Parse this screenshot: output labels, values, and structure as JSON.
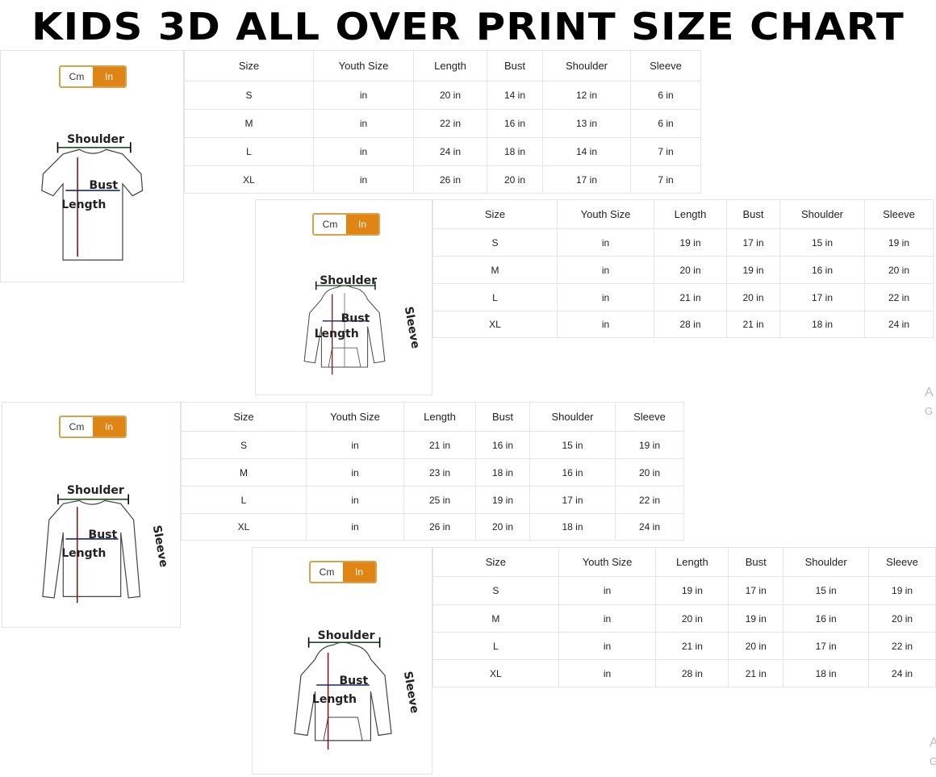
{
  "title": "KIDS 3D ALL OVER PRINT SIZE CHART",
  "unit_toggle": {
    "cm": "Cm",
    "in": "In",
    "selected": "In",
    "active_color": "#e08414"
  },
  "labels": {
    "shoulder": "Shoulder",
    "bust": "Bust",
    "length": "Length",
    "sleeve": "Sleeve"
  },
  "headers": [
    "Size",
    "Youth Size",
    "Length",
    "Bust",
    "Shoulder",
    "Sleeve"
  ],
  "charts": [
    {
      "garment": "t-shirt",
      "rows": [
        [
          "S",
          "in",
          "20 in",
          "14 in",
          "12 in",
          "6 in"
        ],
        [
          "M",
          "in",
          "22 in",
          "16 in",
          "13 in",
          "6 in"
        ],
        [
          "L",
          "in",
          "24 in",
          "18 in",
          "14 in",
          "7 in"
        ],
        [
          "XL",
          "in",
          "26 in",
          "20 in",
          "17 in",
          "7 in"
        ]
      ]
    },
    {
      "garment": "zip-hoodie",
      "rows": [
        [
          "S",
          "in",
          "19 in",
          "17 in",
          "15 in",
          "19 in"
        ],
        [
          "M",
          "in",
          "20 in",
          "19 in",
          "16 in",
          "20 in"
        ],
        [
          "L",
          "in",
          "21 in",
          "20 in",
          "17 in",
          "22 in"
        ],
        [
          "XL",
          "in",
          "28 in",
          "21 in",
          "18 in",
          "24 in"
        ]
      ]
    },
    {
      "garment": "long-sleeve",
      "rows": [
        [
          "S",
          "in",
          "21 in",
          "16 in",
          "15 in",
          "19 in"
        ],
        [
          "M",
          "in",
          "23 in",
          "18 in",
          "16 in",
          "20 in"
        ],
        [
          "L",
          "in",
          "25 in",
          "19 in",
          "17 in",
          "22 in"
        ],
        [
          "XL",
          "in",
          "26 in",
          "20 in",
          "18 in",
          "24 in"
        ]
      ]
    },
    {
      "garment": "pullover-hoodie",
      "rows": [
        [
          "S",
          "in",
          "19 in",
          "17 in",
          "15 in",
          "19 in"
        ],
        [
          "M",
          "in",
          "20 in",
          "19 in",
          "16 in",
          "20 in"
        ],
        [
          "L",
          "in",
          "21 in",
          "20 in",
          "17 in",
          "22 in"
        ],
        [
          "XL",
          "in",
          "28 in",
          "21 in",
          "18 in",
          "24 in"
        ]
      ]
    }
  ],
  "watermark": {
    "line1": "A",
    "line2": "G"
  }
}
